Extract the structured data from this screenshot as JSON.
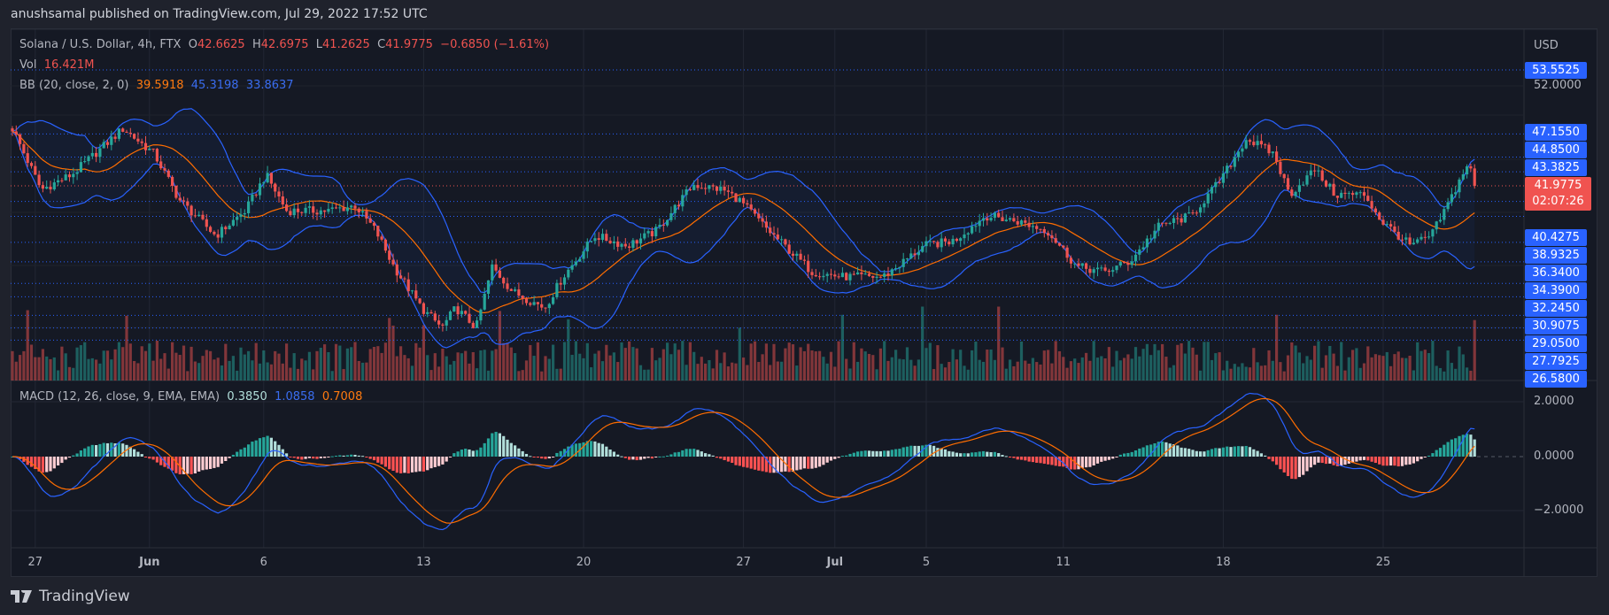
{
  "publisher": "anushsamal published on TradingView.com, Jul 29, 2022 17:52 UTC",
  "legend": {
    "symbol": "Solana / U.S. Dollar, 4h, FTX",
    "o_label": "O",
    "o": "42.6625",
    "h_label": "H",
    "h": "42.6975",
    "l_label": "L",
    "l": "41.2625",
    "c_label": "C",
    "c": "41.9775",
    "change": "−0.6850 (−1.61%)",
    "vol_label": "Vol",
    "vol": "16.421M",
    "bb_label": "BB (20, close, 2, 0)",
    "bb_basis": "39.5918",
    "bb_upper": "45.3198",
    "bb_lower": "33.8637",
    "macd_label": "MACD (12, 26, close, 9, EMA, EMA)",
    "macd_hist": "0.3850",
    "macd_line": "1.0858",
    "macd_signal": "0.7008"
  },
  "price_axis": {
    "currency": "USD",
    "top_label": "53.5525",
    "grid_label": "52.0000",
    "level_labels": [
      "47.1550",
      "44.8500",
      "43.3825",
      "41.9775",
      "40.4275",
      "38.9325",
      "36.3400",
      "34.3900",
      "32.2450",
      "30.9075",
      "29.0500",
      "27.7925",
      "26.5800"
    ],
    "current_price": "41.9775",
    "countdown": "02:07:26"
  },
  "macd_axis": [
    "2.0000",
    "0.0000",
    "−2.0000"
  ],
  "time_axis": [
    {
      "label": "27",
      "day": 1
    },
    {
      "label": "Jun",
      "day": 6
    },
    {
      "label": "6",
      "day": 11
    },
    {
      "label": "13",
      "day": 18
    },
    {
      "label": "20",
      "day": 25
    },
    {
      "label": "27",
      "day": 32
    },
    {
      "label": "Jul",
      "day": 36
    },
    {
      "label": "5",
      "day": 40
    },
    {
      "label": "11",
      "day": 46
    },
    {
      "label": "18",
      "day": 53
    },
    {
      "label": "25",
      "day": 60
    }
  ],
  "logo_text": "TradingView",
  "colors": {
    "up": "#26a69a",
    "down": "#ef5350",
    "bb": "#2962ff",
    "basis": "#ff6d00",
    "macd": "#2962ff",
    "signal": "#ff6d00"
  },
  "chart_data": {
    "type": "candlestick",
    "title": "Solana / U.S. Dollar, 4h, FTX",
    "x_unit": "days since May 26 2022",
    "close_waypoints": [
      [
        0,
        47.7
      ],
      [
        1.26,
        41.6
      ],
      [
        2.6,
        43.1
      ],
      [
        4.85,
        47.7
      ],
      [
        6.2,
        45.2
      ],
      [
        7.3,
        40.6
      ],
      [
        8.9,
        37.0
      ],
      [
        10.2,
        39.5
      ],
      [
        11.1,
        43.1
      ],
      [
        12.0,
        39.5
      ],
      [
        13.8,
        39.5
      ],
      [
        15.0,
        40.0
      ],
      [
        15.9,
        37.5
      ],
      [
        16.7,
        33.9
      ],
      [
        17.9,
        29.8
      ],
      [
        18.8,
        27.8
      ],
      [
        19.4,
        29.8
      ],
      [
        20.3,
        27.8
      ],
      [
        21.0,
        33.9
      ],
      [
        21.9,
        31.4
      ],
      [
        23.3,
        29.8
      ],
      [
        24.1,
        32.9
      ],
      [
        25.5,
        37.0
      ],
      [
        26.9,
        36.0
      ],
      [
        28.2,
        37.5
      ],
      [
        29.8,
        42.1
      ],
      [
        31.1,
        41.6
      ],
      [
        31.8,
        40.6
      ],
      [
        33.1,
        37.5
      ],
      [
        35.0,
        33.4
      ],
      [
        36.3,
        32.9
      ],
      [
        38.1,
        32.9
      ],
      [
        39.0,
        34.4
      ],
      [
        39.9,
        36.0
      ],
      [
        41.2,
        36.5
      ],
      [
        42.6,
        39.0
      ],
      [
        43.9,
        38.5
      ],
      [
        45.3,
        37.5
      ],
      [
        46.6,
        33.9
      ],
      [
        47.8,
        33.4
      ],
      [
        48.9,
        34.4
      ],
      [
        50.2,
        38.0
      ],
      [
        51.6,
        39.0
      ],
      [
        52.9,
        42.6
      ],
      [
        54.0,
        46.7
      ],
      [
        55.2,
        45.2
      ],
      [
        55.9,
        41.1
      ],
      [
        57.0,
        43.6
      ],
      [
        57.9,
        41.1
      ],
      [
        59.2,
        41.1
      ],
      [
        59.9,
        38.5
      ],
      [
        61.2,
        36.0
      ],
      [
        62.1,
        37.0
      ],
      [
        62.8,
        40.0
      ],
      [
        63.7,
        44.2
      ],
      [
        64.1,
        41.9775
      ]
    ],
    "bollinger": {
      "length": 20,
      "mult": 2
    },
    "macd": {
      "fast": 12,
      "slow": 26,
      "signal": 9
    },
    "ylim": [
      26.58,
      53.5525
    ],
    "macd_ylim": [
      -3,
      2.5
    ]
  }
}
